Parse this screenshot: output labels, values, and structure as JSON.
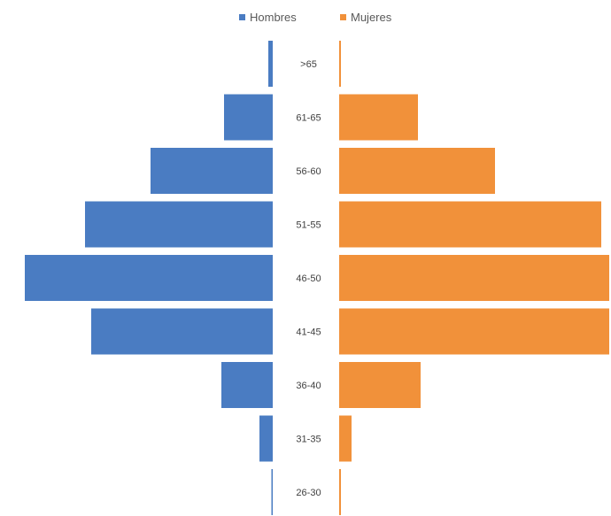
{
  "chart_data": {
    "type": "bar",
    "orientation": "horizontal",
    "style": "population-pyramid",
    "categories": [
      "26-30",
      "31-35",
      "36-40",
      "41-45",
      "46-50",
      "51-55",
      "56-60",
      "61-65",
      ">65"
    ],
    "series": [
      {
        "name": "Hombres",
        "values": [
          1,
          15,
          58,
          205,
          280,
          212,
          138,
          55,
          5
        ],
        "color": "#4a7cc2",
        "side": "left"
      },
      {
        "name": "Mujeres",
        "values": [
          2,
          14,
          92,
          305,
          305,
          296,
          176,
          89,
          2
        ],
        "color": "#f1913a",
        "side": "right"
      }
    ],
    "legend_position": "top-center",
    "grid": false
  }
}
